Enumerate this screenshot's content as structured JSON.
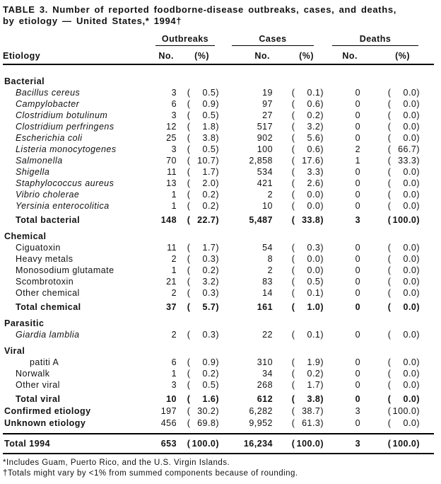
{
  "title": {
    "line1": "TABLE 3. Number of reported foodborne-disease outbreaks, cases, and deaths,",
    "line2": "by etiology — United States,* 1994†"
  },
  "table": {
    "groups": [
      "Outbreaks",
      "Cases",
      "Deaths"
    ],
    "etiology_header": "Etiology",
    "no_label": "No.",
    "pct_label": "(%)",
    "rows": [
      {
        "label": "Bacterial",
        "style": "section"
      },
      {
        "label": "Bacillus cereus",
        "style": "item-italic",
        "cells": [
          "3",
          "0.5",
          "19",
          "0.1",
          "0",
          "0.0"
        ]
      },
      {
        "label": "Campylobacter",
        "style": "item-italic",
        "cells": [
          "6",
          "0.9",
          "97",
          "0.6",
          "0",
          "0.0"
        ]
      },
      {
        "label": "Clostridium botulinum",
        "style": "item-italic",
        "cells": [
          "3",
          "0.5",
          "27",
          "0.2",
          "0",
          "0.0"
        ]
      },
      {
        "label": "Clostridium perfringens",
        "style": "item-italic",
        "cells": [
          "12",
          "1.8",
          "517",
          "3.2",
          "0",
          "0.0"
        ]
      },
      {
        "label": "Escherichia coli",
        "style": "item-italic",
        "cells": [
          "25",
          "3.8",
          "902",
          "5.6",
          "0",
          "0.0"
        ]
      },
      {
        "label": "Listeria monocytogenes",
        "style": "item-italic",
        "cells": [
          "3",
          "0.5",
          "100",
          "0.6",
          "2",
          "66.7"
        ]
      },
      {
        "label": "Salmonella",
        "style": "item-italic",
        "cells": [
          "70",
          "10.7",
          "2,858",
          "17.6",
          "1",
          "33.3"
        ]
      },
      {
        "label": "Shigella",
        "style": "item-italic",
        "cells": [
          "11",
          "1.7",
          "534",
          "3.3",
          "0",
          "0.0"
        ]
      },
      {
        "label": "Staphylococcus aureus",
        "style": "item-italic",
        "cells": [
          "13",
          "2.0",
          "421",
          "2.6",
          "0",
          "0.0"
        ]
      },
      {
        "label": "Vibrio cholerae",
        "style": "item-italic",
        "cells": [
          "1",
          "0.2",
          "2",
          "0.0",
          "0",
          "0.0"
        ]
      },
      {
        "label": "Yersinia enterocolitica",
        "style": "item-italic",
        "cells": [
          "1",
          "0.2",
          "10",
          "0.0",
          "0",
          "0.0"
        ]
      },
      {
        "label": "Total bacterial",
        "style": "total",
        "cells": [
          "148",
          "22.7",
          "5,487",
          "33.8",
          "3",
          "100.0"
        ]
      },
      {
        "label": "Chemical",
        "style": "section"
      },
      {
        "label": "Ciguatoxin",
        "style": "item",
        "cells": [
          "11",
          "1.7",
          "54",
          "0.3",
          "0",
          "0.0"
        ]
      },
      {
        "label": "Heavy metals",
        "style": "item",
        "cells": [
          "2",
          "0.3",
          "8",
          "0.0",
          "0",
          "0.0"
        ]
      },
      {
        "label": "Monosodium glutamate",
        "style": "item",
        "cells": [
          "1",
          "0.2",
          "2",
          "0.0",
          "0",
          "0.0"
        ]
      },
      {
        "label": "Scombrotoxin",
        "style": "item",
        "cells": [
          "21",
          "3.2",
          "83",
          "0.5",
          "0",
          "0.0"
        ]
      },
      {
        "label": "Other chemical",
        "style": "item",
        "cells": [
          "2",
          "0.3",
          "14",
          "0.1",
          "0",
          "0.0"
        ]
      },
      {
        "label": "Total chemical",
        "style": "total",
        "cells": [
          "37",
          "5.7",
          "161",
          "1.0",
          "0",
          "0.0"
        ]
      },
      {
        "label": "Parasitic",
        "style": "section"
      },
      {
        "label": "Giardia lamblia",
        "style": "item-italic",
        "cells": [
          "2",
          "0.3",
          "22",
          "0.1",
          "0",
          "0.0"
        ]
      },
      {
        "label": "Viral",
        "style": "section"
      },
      {
        "label": "patiti A",
        "style": "item-deep",
        "cells": [
          "6",
          "0.9",
          "310",
          "1.9",
          "0",
          "0.0"
        ]
      },
      {
        "label": "Norwalk",
        "style": "item",
        "cells": [
          "1",
          "0.2",
          "34",
          "0.2",
          "0",
          "0.0"
        ]
      },
      {
        "label": "Other viral",
        "style": "item",
        "cells": [
          "3",
          "0.5",
          "268",
          "1.7",
          "0",
          "0.0"
        ]
      },
      {
        "label": "Total viral",
        "style": "total",
        "cells": [
          "10",
          "1.6",
          "612",
          "3.8",
          "0",
          "0.0"
        ]
      },
      {
        "label": "Confirmed etiology",
        "style": "total-flush",
        "cells": [
          "197",
          "30.2",
          "6,282",
          "38.7",
          "3",
          "100.0"
        ]
      },
      {
        "label": "Unknown etiology",
        "style": "total-flush",
        "cells": [
          "456",
          "69.8",
          "9,952",
          "61.3",
          "0",
          "0.0"
        ]
      }
    ],
    "grand_rows": [
      {
        "label": "Total 1994",
        "style": "grand",
        "cells": [
          "653",
          "100.0",
          "16,234",
          "100.0",
          "3",
          "100.0"
        ]
      }
    ]
  },
  "footnotes": [
    "*Includes Guam, Puerto Rico, and the U.S. Virgin Islands.",
    "†Totals might vary by <1% from summed components because of rounding."
  ]
}
